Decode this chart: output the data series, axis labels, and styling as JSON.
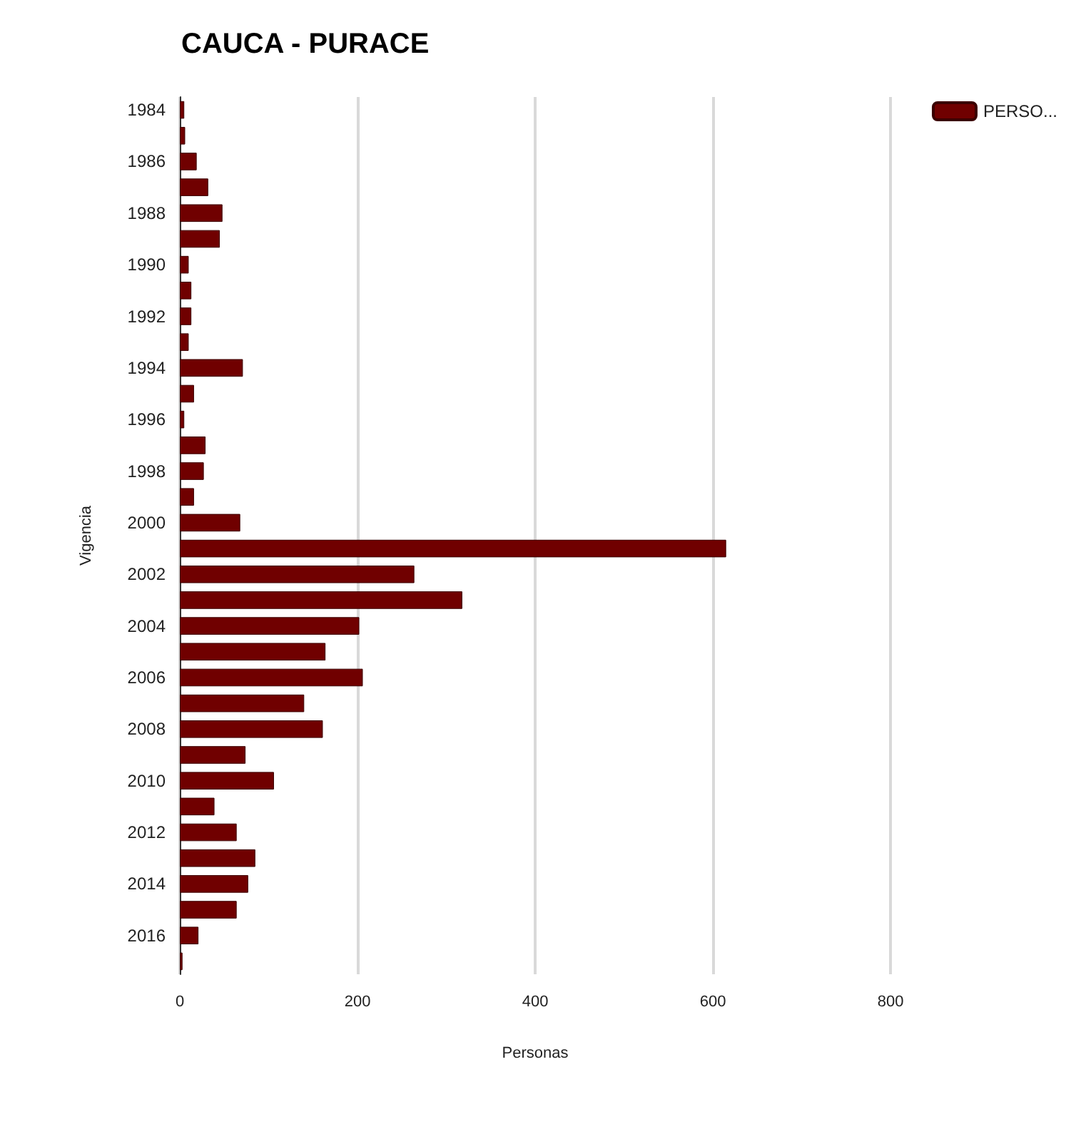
{
  "chart_data": {
    "type": "bar",
    "orientation": "horizontal",
    "title": "CAUCA - PURACE",
    "xlabel": "Personas",
    "ylabel": "Vigencia",
    "categories": [
      "1984",
      null,
      "1986",
      null,
      "1988",
      null,
      "1990",
      null,
      "1992",
      null,
      "1994",
      null,
      "1996",
      null,
      "1998",
      null,
      "2000",
      null,
      "2002",
      null,
      "2004",
      null,
      "2006",
      null,
      "2008",
      null,
      "2010",
      null,
      "2012",
      null,
      "2014",
      null,
      "2016",
      null
    ],
    "series": [
      {
        "name": "PERSO...",
        "color": "#700000",
        "values": [
          5,
          6,
          19,
          32,
          48,
          45,
          10,
          13,
          13,
          10,
          71,
          16,
          5,
          29,
          27,
          16,
          68,
          615,
          264,
          318,
          202,
          164,
          206,
          140,
          161,
          74,
          106,
          39,
          64,
          85,
          77,
          64,
          21,
          3
        ]
      }
    ],
    "xlim": [
      0,
      800
    ],
    "xticks": [
      0,
      200,
      400,
      600,
      800
    ],
    "grid": "x",
    "legend": "top right"
  }
}
